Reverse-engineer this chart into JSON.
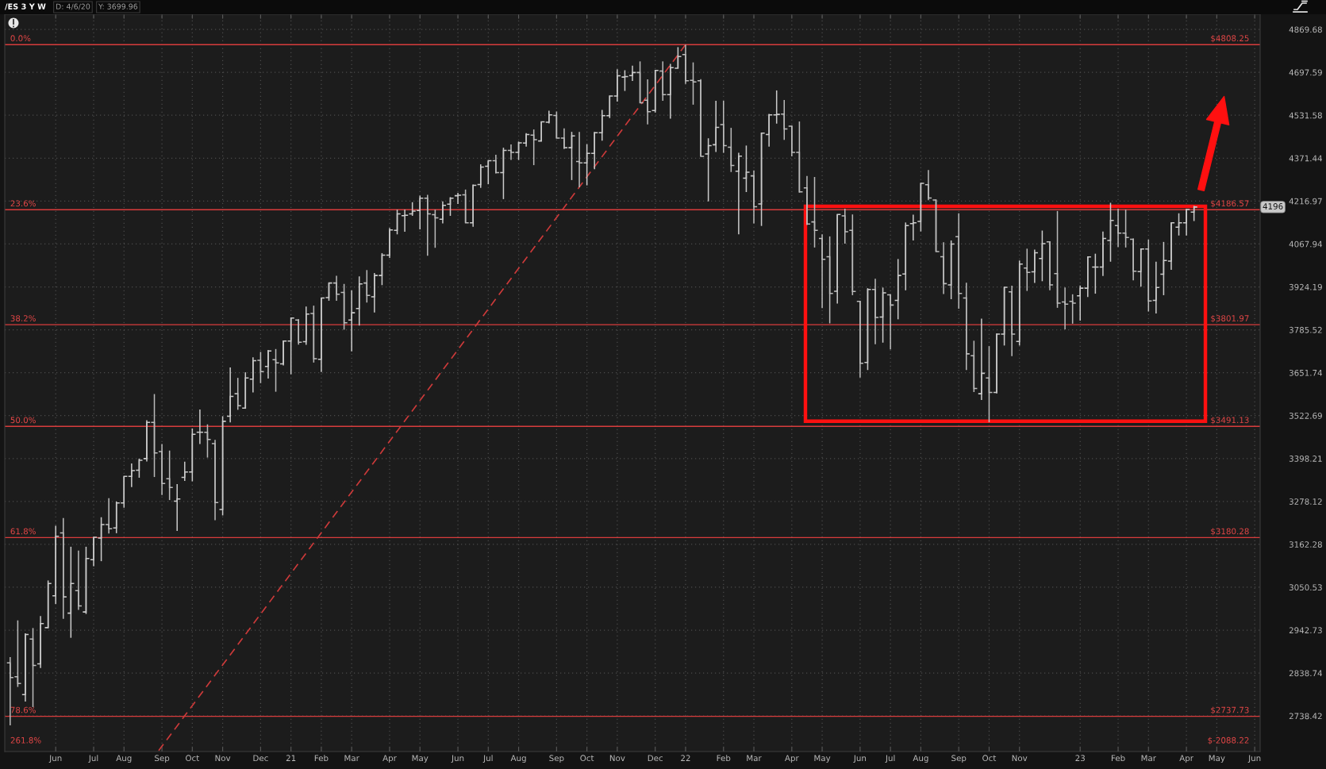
{
  "chart_data": {
    "type": "candlestick",
    "title": "/ES 3 Y W",
    "log": true,
    "grid": true,
    "x": [
      "2020-04-20",
      "2020-04-27",
      "2020-05-04",
      "2020-05-11",
      "2020-05-18",
      "2020-05-25",
      "2020-06-01",
      "2020-06-08",
      "2020-06-15",
      "2020-06-22",
      "2020-06-29",
      "2020-07-06",
      "2020-07-13",
      "2020-07-20",
      "2020-07-27",
      "2020-08-03",
      "2020-08-10",
      "2020-08-17",
      "2020-08-24",
      "2020-08-31",
      "2020-09-07",
      "2020-09-14",
      "2020-09-21",
      "2020-09-28",
      "2020-10-05",
      "2020-10-12",
      "2020-10-19",
      "2020-10-26",
      "2020-11-02",
      "2020-11-09",
      "2020-11-16",
      "2020-11-23",
      "2020-11-30",
      "2020-12-07",
      "2020-12-14",
      "2020-12-21",
      "2020-12-28",
      "2021-01-04",
      "2021-01-11",
      "2021-01-18",
      "2021-01-25",
      "2021-02-01",
      "2021-02-08",
      "2021-02-15",
      "2021-02-22",
      "2021-03-01",
      "2021-03-08",
      "2021-03-15",
      "2021-03-22",
      "2021-03-29",
      "2021-04-05",
      "2021-04-12",
      "2021-04-19",
      "2021-04-26",
      "2021-05-03",
      "2021-05-10",
      "2021-05-17",
      "2021-05-24",
      "2021-05-31",
      "2021-06-07",
      "2021-06-14",
      "2021-06-21",
      "2021-06-28",
      "2021-07-05",
      "2021-07-12",
      "2021-07-19",
      "2021-07-26",
      "2021-08-02",
      "2021-08-09",
      "2021-08-16",
      "2021-08-23",
      "2021-08-30",
      "2021-09-06",
      "2021-09-13",
      "2021-09-20",
      "2021-09-27",
      "2021-10-04",
      "2021-10-11",
      "2021-10-18",
      "2021-10-25",
      "2021-11-01",
      "2021-11-08",
      "2021-11-15",
      "2021-11-22",
      "2021-11-29",
      "2021-12-06",
      "2021-12-13",
      "2021-12-20",
      "2021-12-27",
      "2022-01-03",
      "2022-01-10",
      "2022-01-17",
      "2022-01-24",
      "2022-01-31",
      "2022-02-07",
      "2022-02-14",
      "2022-02-21",
      "2022-02-28",
      "2022-03-07",
      "2022-03-14",
      "2022-03-21",
      "2022-03-28",
      "2022-04-04",
      "2022-04-11",
      "2022-04-18",
      "2022-04-25",
      "2022-05-02",
      "2022-05-09",
      "2022-05-16",
      "2022-05-23",
      "2022-05-30",
      "2022-06-06",
      "2022-06-13",
      "2022-06-20",
      "2022-06-27",
      "2022-07-04",
      "2022-07-11",
      "2022-07-18",
      "2022-07-25",
      "2022-08-01",
      "2022-08-08",
      "2022-08-15",
      "2022-08-22",
      "2022-08-29",
      "2022-09-05",
      "2022-09-12",
      "2022-09-19",
      "2022-09-26",
      "2022-10-03",
      "2022-10-10",
      "2022-10-17",
      "2022-10-24",
      "2022-10-31",
      "2022-11-07",
      "2022-11-14",
      "2022-11-21",
      "2022-11-28",
      "2022-12-05",
      "2022-12-12",
      "2022-12-19",
      "2022-12-26",
      "2023-01-02",
      "2023-01-09",
      "2023-01-16",
      "2023-01-23",
      "2023-01-30",
      "2023-02-06",
      "2023-02-13",
      "2023-02-20",
      "2023-02-27",
      "2023-03-06",
      "2023-03-13",
      "2023-03-20",
      "2023-03-27",
      "2023-04-03",
      "2023-04-10",
      "2023-04-17"
    ],
    "ohlc": [
      [
        2863,
        2877,
        2717,
        2828
      ],
      [
        2830,
        2967,
        2806,
        2814
      ],
      [
        2788,
        2935,
        2772,
        2932
      ],
      [
        2921,
        2948,
        2759,
        2857
      ],
      [
        2861,
        2978,
        2851,
        2959
      ],
      [
        2949,
        3068,
        2948,
        3060
      ],
      [
        3029,
        3212,
        3008,
        3184
      ],
      [
        3193,
        3233,
        2971,
        3026
      ],
      [
        2985,
        3156,
        2924,
        3060
      ],
      [
        3042,
        3146,
        2993,
        3003
      ],
      [
        2988,
        3156,
        2983,
        3125
      ],
      [
        3122,
        3181,
        3105,
        3181
      ],
      [
        3179,
        3235,
        3118,
        3215
      ],
      [
        3215,
        3287,
        3191,
        3204
      ],
      [
        3206,
        3278,
        3192,
        3274
      ],
      [
        3274,
        3348,
        3261,
        3348
      ],
      [
        3348,
        3384,
        3318,
        3364
      ],
      [
        3365,
        3398,
        3344,
        3393
      ],
      [
        3398,
        3509,
        3390,
        3503
      ],
      [
        3503,
        3587,
        3346,
        3414
      ],
      [
        3418,
        3440,
        3296,
        3328
      ],
      [
        3341,
        3421,
        3282,
        3317
      ],
      [
        3279,
        3326,
        3198,
        3285
      ],
      [
        3345,
        3389,
        3335,
        3360
      ],
      [
        3360,
        3485,
        3334,
        3468
      ],
      [
        3474,
        3541,
        3440,
        3474
      ],
      [
        3474,
        3497,
        3401,
        3453
      ],
      [
        3441,
        3452,
        3227,
        3275
      ],
      [
        3256,
        3521,
        3240,
        3506
      ],
      [
        3521,
        3668,
        3503,
        3580
      ],
      [
        3588,
        3636,
        3540,
        3552
      ],
      [
        3545,
        3653,
        3543,
        3636
      ],
      [
        3632,
        3699,
        3592,
        3689
      ],
      [
        3690,
        3716,
        3620,
        3655
      ],
      [
        3671,
        3722,
        3634,
        3719
      ],
      [
        3692,
        3725,
        3594,
        3682
      ],
      [
        3679,
        3752,
        3674,
        3750
      ],
      [
        3750,
        3825,
        3647,
        3823
      ],
      [
        3817,
        3819,
        3739,
        3746
      ],
      [
        3748,
        3860,
        3738,
        3836
      ],
      [
        3838,
        3863,
        3683,
        3695
      ],
      [
        3693,
        3888,
        3654,
        3888
      ],
      [
        3889,
        3937,
        3879,
        3937
      ],
      [
        3937,
        3961,
        3879,
        3900
      ],
      [
        3906,
        3934,
        3786,
        3808
      ],
      [
        3817,
        3913,
        3718,
        3840
      ],
      [
        3854,
        3959,
        3799,
        3934
      ],
      [
        3937,
        3980,
        3873,
        3896
      ],
      [
        3892,
        3970,
        3841,
        3962
      ],
      [
        3962,
        4037,
        3930,
        4030
      ],
      [
        4030,
        4123,
        4021,
        4116
      ],
      [
        4115,
        4187,
        4101,
        4172
      ],
      [
        4166,
        4187,
        4110,
        4167
      ],
      [
        4172,
        4213,
        4165,
        4182
      ],
      [
        4184,
        4236,
        4118,
        4227
      ],
      [
        4227,
        4239,
        4028,
        4172
      ],
      [
        4169,
        4187,
        4055,
        4158
      ],
      [
        4153,
        4216,
        4139,
        4202
      ],
      [
        4206,
        4231,
        4165,
        4227
      ],
      [
        4236,
        4246,
        4207,
        4238
      ],
      [
        4239,
        4258,
        4141,
        4141
      ],
      [
        4141,
        4276,
        4127,
        4273
      ],
      [
        4276,
        4349,
        4264,
        4339
      ],
      [
        4342,
        4362,
        4277,
        4362
      ],
      [
        4362,
        4384,
        4316,
        4319
      ],
      [
        4319,
        4410,
        4224,
        4400
      ],
      [
        4400,
        4422,
        4365,
        4393
      ],
      [
        4393,
        4433,
        4365,
        4428
      ],
      [
        4427,
        4464,
        4414,
        4459
      ],
      [
        4457,
        4478,
        4346,
        4440
      ],
      [
        4435,
        4508,
        4435,
        4507
      ],
      [
        4505,
        4549,
        4501,
        4533
      ],
      [
        4531,
        4546,
        4445,
        4446
      ],
      [
        4446,
        4482,
        4405,
        4410
      ],
      [
        4410,
        4469,
        4292,
        4454
      ],
      [
        4359,
        4469,
        4266,
        4354
      ],
      [
        4354,
        4423,
        4273,
        4389
      ],
      [
        4389,
        4469,
        4331,
        4466
      ],
      [
        4466,
        4552,
        4436,
        4530
      ],
      [
        4530,
        4607,
        4521,
        4605
      ],
      [
        4605,
        4710,
        4584,
        4684
      ],
      [
        4679,
        4706,
        4625,
        4681
      ],
      [
        4685,
        4724,
        4664,
        4697
      ],
      [
        4697,
        4741,
        4578,
        4579
      ],
      [
        4589,
        4670,
        4497,
        4545
      ],
      [
        4550,
        4706,
        4542,
        4705
      ],
      [
        4703,
        4741,
        4587,
        4611
      ],
      [
        4611,
        4731,
        4519,
        4716
      ],
      [
        4714,
        4798,
        4714,
        4760
      ],
      [
        4768,
        4808,
        4652,
        4665
      ],
      [
        4666,
        4737,
        4572,
        4660
      ],
      [
        4665,
        4671,
        4378,
        4378
      ],
      [
        4387,
        4445,
        4216,
        4418
      ],
      [
        4421,
        4587,
        4394,
        4486
      ],
      [
        4496,
        4587,
        4391,
        4418
      ],
      [
        4412,
        4484,
        4321,
        4345
      ],
      [
        4324,
        4391,
        4101,
        4379
      ],
      [
        4299,
        4418,
        4249,
        4320
      ],
      [
        4307,
        4327,
        4139,
        4197
      ],
      [
        4207,
        4466,
        4130,
        4464
      ],
      [
        4459,
        4537,
        4414,
        4533
      ],
      [
        4533,
        4627,
        4500,
        4535
      ],
      [
        4536,
        4590,
        4439,
        4480
      ],
      [
        4490,
        4492,
        4378,
        4393
      ],
      [
        4393,
        4508,
        4247,
        4250
      ],
      [
        4264,
        4307,
        4133,
        4137
      ],
      [
        4144,
        4303,
        4056,
        4115
      ],
      [
        4087,
        4101,
        3855,
        4016
      ],
      [
        4025,
        4094,
        3806,
        3903
      ],
      [
        3910,
        4170,
        3870,
        4170
      ],
      [
        4165,
        4190,
        4069,
        4110
      ],
      [
        4115,
        4170,
        3897,
        3909
      ],
      [
        3877,
        3879,
        3637,
        3681
      ],
      [
        3683,
        3920,
        3660,
        3916
      ],
      [
        3916,
        3951,
        3740,
        3825
      ],
      [
        3826,
        3922,
        3745,
        3905
      ],
      [
        3898,
        3900,
        3724,
        3865
      ],
      [
        3880,
        4017,
        3819,
        3962
      ],
      [
        3967,
        4142,
        3913,
        4131
      ],
      [
        4138,
        4169,
        4080,
        4141
      ],
      [
        4146,
        4281,
        4111,
        4280
      ],
      [
        4275,
        4328,
        4220,
        4228
      ],
      [
        4221,
        4222,
        4042,
        4042
      ],
      [
        4025,
        4074,
        3901,
        3935
      ],
      [
        3931,
        4080,
        3884,
        4068
      ],
      [
        4093,
        4174,
        3853,
        3903
      ],
      [
        3888,
        3938,
        3660,
        3710
      ],
      [
        3704,
        3751,
        3593,
        3604
      ],
      [
        3588,
        3821,
        3569,
        3650
      ],
      [
        3636,
        3734,
        3503,
        3592
      ],
      [
        3592,
        3774,
        3589,
        3772
      ],
      [
        3772,
        3924,
        3736,
        3923
      ],
      [
        3908,
        3928,
        3703,
        3772
      ],
      [
        3749,
        4012,
        3736,
        4000
      ],
      [
        3987,
        4052,
        3911,
        3972
      ],
      [
        3974,
        4049,
        3937,
        4038
      ],
      [
        4019,
        4114,
        3943,
        4069
      ],
      [
        4075,
        4077,
        3913,
        3931
      ],
      [
        3968,
        4182,
        3856,
        3871
      ],
      [
        3875,
        3922,
        3787,
        3868
      ],
      [
        3877,
        3900,
        3805,
        3871
      ],
      [
        3895,
        3929,
        3815,
        3920
      ],
      [
        3920,
        4026,
        3891,
        4024
      ],
      [
        3990,
        4035,
        3902,
        3990
      ],
      [
        3990,
        4111,
        3960,
        4087
      ],
      [
        4080,
        4211,
        4008,
        4149
      ],
      [
        4131,
        4190,
        4058,
        4105
      ],
      [
        4105,
        4187,
        4056,
        4090
      ],
      [
        4084,
        4087,
        3946,
        3976
      ],
      [
        3975,
        4053,
        3925,
        4051
      ],
      [
        4051,
        4083,
        3844,
        3878
      ],
      [
        3880,
        4008,
        3838,
        3922
      ],
      [
        3966,
        4075,
        3897,
        4012
      ],
      [
        4010,
        4141,
        3981,
        4141
      ],
      [
        4126,
        4174,
        4097,
        4141
      ],
      [
        4141,
        4190,
        4097,
        4187
      ],
      [
        4178,
        4200,
        4147,
        4196
      ]
    ],
    "colors": [
      "#bababa",
      "#bababa",
      "#cacaca",
      "#bababa",
      "#cacaca",
      "#cacaca",
      "#cacaca",
      "#bababa",
      "#cacaca",
      "#bababa",
      "#cacaca",
      "#cacaca",
      "#cacaca",
      "#bababa",
      "#cacaca",
      "#cacaca",
      "#cacaca",
      "#cacaca",
      "#cacaca",
      "#bababa",
      "#bababa",
      "#bababa",
      "#cacaca",
      "#cacaca",
      "#cacaca",
      "#cacaca",
      "#bababa",
      "#bababa",
      "#cacaca",
      "#cacaca",
      "#bababa",
      "#cacaca",
      "#cacaca",
      "#bababa",
      "#cacaca",
      "#bababa",
      "#cacaca",
      "#cacaca",
      "#bababa",
      "#cacaca",
      "#bababa",
      "#cacaca",
      "#cacaca",
      "#bababa",
      "#bababa",
      "#cacaca",
      "#cacaca",
      "#bababa",
      "#cacaca",
      "#cacaca",
      "#cacaca",
      "#cacaca",
      "#cacaca",
      "#cacaca",
      "#cacaca",
      "#bababa",
      "#bababa",
      "#cacaca",
      "#cacaca",
      "#cacaca",
      "#bababa",
      "#cacaca",
      "#cacaca",
      "#cacaca",
      "#bababa",
      "#cacaca",
      "#bababa",
      "#cacaca",
      "#cacaca",
      "#bababa",
      "#cacaca",
      "#cacaca",
      "#bababa",
      "#bababa",
      "#cacaca",
      "#bababa",
      "#cacaca",
      "#cacaca",
      "#cacaca",
      "#cacaca",
      "#cacaca",
      "#cacaca",
      "#cacaca",
      "#bababa",
      "#bababa",
      "#cacaca",
      "#bababa",
      "#cacaca",
      "#cacaca",
      "#bababa",
      "#bababa",
      "#bababa",
      "#cacaca",
      "#cacaca",
      "#bababa",
      "#bababa",
      "#cacaca",
      "#cacaca",
      "#bababa",
      "#cacaca",
      "#cacaca",
      "#cacaca",
      "#bababa",
      "#bababa",
      "#bababa",
      "#bababa",
      "#bababa",
      "#bababa",
      "#bababa",
      "#cacaca",
      "#bababa",
      "#bababa",
      "#bababa",
      "#cacaca",
      "#bababa",
      "#cacaca",
      "#bababa",
      "#cacaca",
      "#cacaca",
      "#cacaca",
      "#cacaca",
      "#bababa",
      "#bababa",
      "#bababa",
      "#cacaca",
      "#bababa",
      "#bababa",
      "#bababa",
      "#cacaca",
      "#bababa",
      "#cacaca",
      "#cacaca",
      "#bababa",
      "#cacaca",
      "#bababa",
      "#cacaca",
      "#cacaca",
      "#bababa",
      "#bababa",
      "#bababa",
      "#bababa",
      "#cacaca",
      "#cacaca",
      "#cacaca",
      "#cacaca",
      "#cacaca",
      "#bababa",
      "#bababa",
      "#bababa",
      "#cacaca",
      "#bababa",
      "#cacaca",
      "#cacaca",
      "#cacaca",
      "#cacaca",
      "#cacaca",
      "#cacaca"
    ],
    "series": [
      {
        "type": "line",
        "x": [
          "2020-09-04",
          "2022-01-03"
        ],
        "values": [
          2660,
          4808
        ],
        "color": "#cc3a3a",
        "line_style": "dashed"
      }
    ],
    "xlim": [
      "2020-04-15",
      "2023-06-17"
    ],
    "xticks": [
      {
        "value": "2020-06-01",
        "label": "Jun"
      },
      {
        "value": "2020-07-06",
        "label": "Jul"
      },
      {
        "value": "2020-08-03",
        "label": "Aug"
      },
      {
        "value": "2020-09-07",
        "label": "Sep"
      },
      {
        "value": "2020-10-05",
        "label": "Oct"
      },
      {
        "value": "2020-11-02",
        "label": "Nov"
      },
      {
        "value": "2020-12-07",
        "label": "Dec"
      },
      {
        "value": "2021-01-04",
        "label": "21"
      },
      {
        "value": "2021-02-01",
        "label": "Feb"
      },
      {
        "value": "2021-03-01",
        "label": "Mar"
      },
      {
        "value": "2021-04-05",
        "label": "Apr"
      },
      {
        "value": "2021-05-03",
        "label": "May"
      },
      {
        "value": "2021-06-07",
        "label": "Jun"
      },
      {
        "value": "2021-07-05",
        "label": "Jul"
      },
      {
        "value": "2021-08-02",
        "label": "Aug"
      },
      {
        "value": "2021-09-06",
        "label": "Sep"
      },
      {
        "value": "2021-10-04",
        "label": "Oct"
      },
      {
        "value": "2021-11-01",
        "label": "Nov"
      },
      {
        "value": "2021-12-06",
        "label": "Dec"
      },
      {
        "value": "2022-01-03",
        "label": "22"
      },
      {
        "value": "2022-02-07",
        "label": "Feb"
      },
      {
        "value": "2022-03-07",
        "label": "Mar"
      },
      {
        "value": "2022-04-11",
        "label": "Apr"
      },
      {
        "value": "2022-05-09",
        "label": "May"
      },
      {
        "value": "2022-06-13",
        "label": "Jun"
      },
      {
        "value": "2022-07-11",
        "label": "Jul"
      },
      {
        "value": "2022-08-08",
        "label": "Aug"
      },
      {
        "value": "2022-09-12",
        "label": "Sep"
      },
      {
        "value": "2022-10-10",
        "label": "Oct"
      },
      {
        "value": "2022-11-07",
        "label": "Nov"
      },
      {
        "value": "2023-01-02",
        "label": "23"
      },
      {
        "value": "2023-02-06",
        "label": "Feb"
      },
      {
        "value": "2023-03-06",
        "label": "Mar"
      },
      {
        "value": "2023-04-10",
        "label": "Apr"
      },
      {
        "value": "2023-05-08",
        "label": "May"
      },
      {
        "value": "2023-06-12",
        "label": "Jun"
      }
    ],
    "ylim": [
      2658,
      4932
    ],
    "yticks": [
      2738.42,
      2838.74,
      2942.73,
      3050.53,
      3162.28,
      3278.12,
      3398.21,
      3522.69,
      3651.74,
      3785.52,
      3924.19,
      4067.94,
      4216.97,
      4371.44,
      4531.58,
      4697.59,
      4869.68
    ],
    "ref_lines": [
      {
        "axis": "y",
        "value": 4808.25,
        "label": "$4808.25",
        "color": "#d83c3c"
      },
      {
        "axis": "y",
        "value": 4186.57,
        "label": "$4186.57",
        "color": "#d83c3c"
      },
      {
        "axis": "y",
        "value": 3801.97,
        "label": "$3801.97",
        "color": "#d83c3c"
      },
      {
        "axis": "y",
        "value": 3491.13,
        "label": "$3491.13",
        "color": "#d83c3c"
      },
      {
        "axis": "y",
        "value": 3180.28,
        "label": "$3180.28",
        "color": "#d83c3c"
      },
      {
        "axis": "y",
        "value": 2737.73,
        "label": "$2737.73",
        "color": "#d83c3c"
      }
    ],
    "annotations": [
      "D: 4/6/20",
      "Y: 3699.96",
      "261.8%",
      "$-2088.22",
      "4196",
      {
        "text": "0.0%",
        "x": "2020-04-20",
        "y": 4808.25
      },
      {
        "text": "23.6%",
        "x": "2020-04-20",
        "y": 4186.57
      },
      {
        "text": "38.2%",
        "x": "2020-04-20",
        "y": 3801.97
      },
      {
        "text": "50.0%",
        "x": "2020-04-20",
        "y": 3491.13
      },
      {
        "text": "61.8%",
        "x": "2020-04-20",
        "y": 3180.28
      },
      {
        "text": "78.6%",
        "x": "2020-04-20",
        "y": 2737.73
      }
    ]
  }
}
